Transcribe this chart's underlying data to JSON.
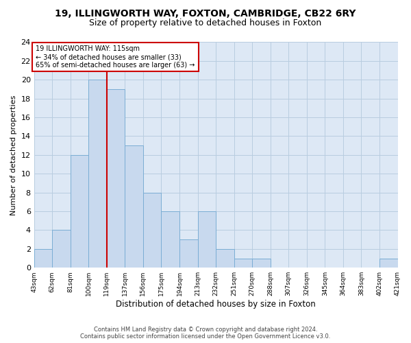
{
  "title_line1": "19, ILLINGWORTH WAY, FOXTON, CAMBRIDGE, CB22 6RY",
  "title_line2": "Size of property relative to detached houses in Foxton",
  "xlabel": "Distribution of detached houses by size in Foxton",
  "ylabel": "Number of detached properties",
  "bar_color": "#c8d9ee",
  "bar_edge_color": "#7aadd4",
  "bar_values": [
    2,
    4,
    12,
    20,
    19,
    13,
    8,
    6,
    3,
    6,
    2,
    1,
    1,
    0,
    0,
    0,
    0,
    0,
    0,
    1
  ],
  "bin_labels": [
    "43sqm",
    "62sqm",
    "81sqm",
    "100sqm",
    "119sqm",
    "137sqm",
    "156sqm",
    "175sqm",
    "194sqm",
    "213sqm",
    "232sqm",
    "251sqm",
    "270sqm",
    "288sqm",
    "307sqm",
    "326sqm",
    "345sqm",
    "364sqm",
    "383sqm",
    "402sqm",
    "421sqm"
  ],
  "ylim": [
    0,
    24
  ],
  "yticks": [
    0,
    2,
    4,
    6,
    8,
    10,
    12,
    14,
    16,
    18,
    20,
    22,
    24
  ],
  "property_bin_index": 3,
  "vline_color": "#cc0000",
  "annotation_line1": "19 ILLINGWORTH WAY: 115sqm",
  "annotation_line2": "← 34% of detached houses are smaller (33)",
  "annotation_line3": "65% of semi-detached houses are larger (63) →",
  "annotation_box_color": "#ffffff",
  "annotation_box_edge": "#cc0000",
  "footer_line1": "Contains HM Land Registry data © Crown copyright and database right 2024.",
  "footer_line2": "Contains public sector information licensed under the Open Government Licence v3.0.",
  "bg_color": "#ffffff",
  "axes_bg_color": "#dde8f5",
  "grid_color": "#b8cde0",
  "title_fontsize": 10,
  "subtitle_fontsize": 9
}
